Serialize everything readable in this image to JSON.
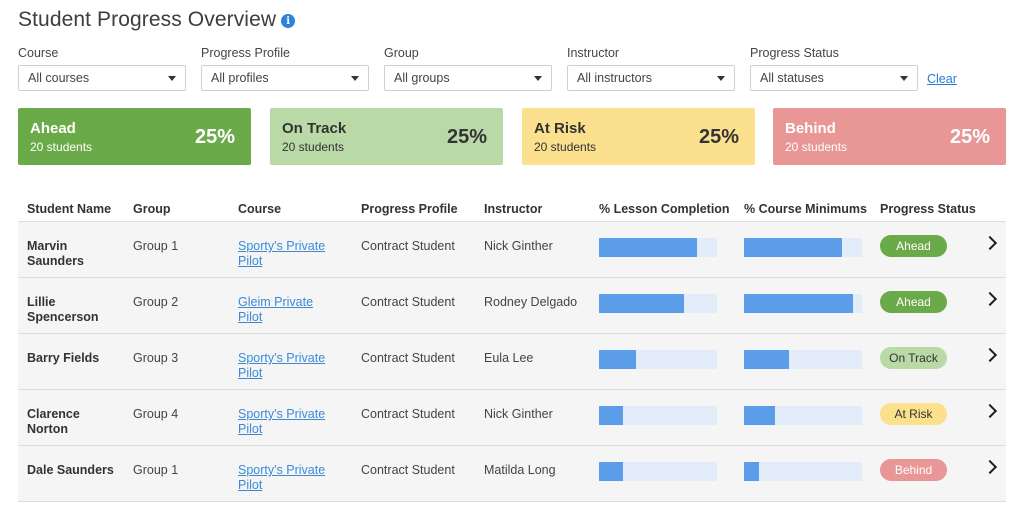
{
  "page": {
    "title": "Student Progress Overview",
    "info_icon": "i"
  },
  "filters": [
    {
      "label": "Course",
      "value": "All courses"
    },
    {
      "label": "Progress Profile",
      "value": "All profiles"
    },
    {
      "label": "Group",
      "value": "All groups"
    },
    {
      "label": "Instructor",
      "value": "All instructors"
    },
    {
      "label": "Progress Status",
      "value": "All statuses"
    }
  ],
  "clear_label": "Clear",
  "cards": [
    {
      "name": "Ahead",
      "count": "20 students",
      "pct": "25%",
      "bg": "#6aaa48",
      "fg": "#ffffff"
    },
    {
      "name": "On Track",
      "count": "20 students",
      "pct": "25%",
      "bg": "#b9d9a7",
      "fg": "#333333"
    },
    {
      "name": "At Risk",
      "count": "20 students",
      "pct": "25%",
      "bg": "#fbe08d",
      "fg": "#333333"
    },
    {
      "name": "Behind",
      "count": "20 students",
      "pct": "25%",
      "bg": "#e89696",
      "fg": "#ffffff"
    }
  ],
  "table": {
    "headers": [
      "Student Name",
      "Group",
      "Course",
      "Progress Profile",
      "Instructor",
      "% Lesson Completion",
      "% Course Minimums",
      "Progress Status"
    ],
    "rows": [
      {
        "name": "Marvin Saunders",
        "group": "Group 1",
        "course": "Sporty's Private Pilot",
        "profile": "Contract Student",
        "instructor": "Nick Ginther",
        "lesson_pct": 83,
        "minimums_pct": 83,
        "status": "Ahead"
      },
      {
        "name": "Lillie Spencerson",
        "group": "Group 2",
        "course": "Gleim Private Pilot",
        "profile": "Contract Student",
        "instructor": "Rodney Delgado",
        "lesson_pct": 72,
        "minimums_pct": 92,
        "status": "Ahead"
      },
      {
        "name": "Barry Fields",
        "group": "Group 3",
        "course": "Sporty's Private Pilot",
        "profile": "Contract Student",
        "instructor": "Eula Lee",
        "lesson_pct": 31,
        "minimums_pct": 38,
        "status": "On Track"
      },
      {
        "name": "Clarence Norton",
        "group": "Group 4",
        "course": "Sporty's Private Pilot",
        "profile": "Contract Student",
        "instructor": "Nick Ginther",
        "lesson_pct": 20,
        "minimums_pct": 26,
        "status": "At Risk"
      },
      {
        "name": "Dale Saunders",
        "group": "Group 1",
        "course": "Sporty's Private Pilot",
        "profile": "Contract Student",
        "instructor": "Matilda Long",
        "lesson_pct": 20,
        "minimums_pct": 13,
        "status": "Behind"
      }
    ]
  },
  "status_colors": {
    "Ahead": {
      "bg": "#6aaa48",
      "fg": "#ffffff"
    },
    "On Track": {
      "bg": "#b9d9a7",
      "fg": "#333333"
    },
    "At Risk": {
      "bg": "#fbe08d",
      "fg": "#333333"
    },
    "Behind": {
      "bg": "#e89696",
      "fg": "#ffffff"
    }
  }
}
